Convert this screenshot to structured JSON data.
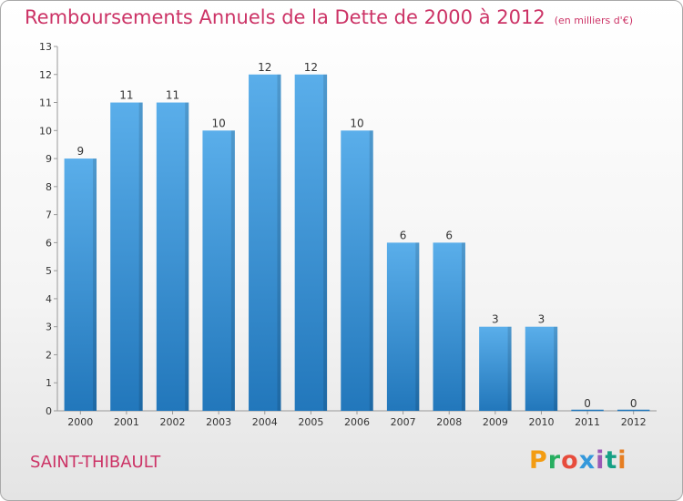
{
  "chart_data": {
    "type": "bar",
    "title": "Remboursements Annuels de la Dette de 2000 à 2012",
    "unit_note": "(en milliers d'€)",
    "categories": [
      "2000",
      "2001",
      "2002",
      "2003",
      "2004",
      "2005",
      "2006",
      "2007",
      "2008",
      "2009",
      "2010",
      "2011",
      "2012"
    ],
    "values": [
      9,
      11,
      11,
      10,
      12,
      12,
      10,
      6,
      6,
      3,
      3,
      0,
      0
    ],
    "ylim": [
      0,
      13
    ],
    "yticks": [
      0,
      1,
      2,
      3,
      4,
      5,
      6,
      7,
      8,
      9,
      10,
      11,
      12,
      13
    ],
    "grid": false,
    "bar_color_top": "#5aaeea",
    "bar_color_bottom": "#2277bb"
  },
  "footer": {
    "commune": "SAINT-THIBAULT",
    "logo": "Proxiti",
    "logo_colors": [
      "#f39c12",
      "#27ae60",
      "#e74c3c",
      "#3498db",
      "#9b59b6",
      "#16a085",
      "#e67e22"
    ]
  }
}
